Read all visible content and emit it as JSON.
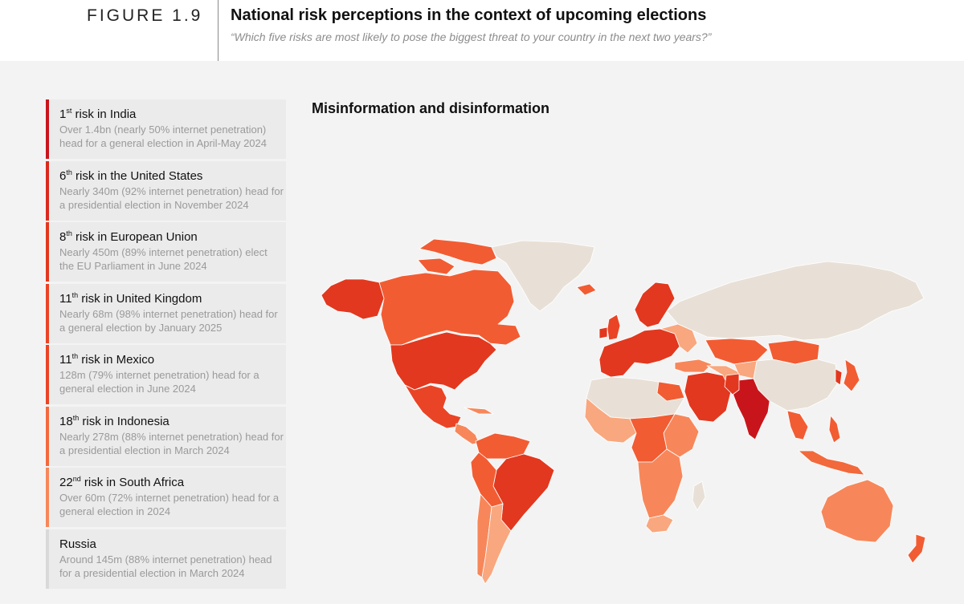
{
  "header": {
    "figure_label": "FIGURE 1.9",
    "title": "National risk perceptions in the context of upcoming elections",
    "subtitle": "“Which five risks are most likely to pose the biggest threat to your country in the next two years?”"
  },
  "map": {
    "title": "Misinformation and disinformation",
    "colors": {
      "darkest": "#c8151b",
      "dark": "#e2381f",
      "mid": "#f25c33",
      "light": "#f7875a",
      "lightest": "#f9a77e",
      "no_data": "#e8e0d6",
      "ocean": "#f3f3f3"
    }
  },
  "cards": [
    {
      "rank": "1",
      "suffix": "st",
      "rest": " risk in India",
      "desc": "Over 1.4bn (nearly 50% internet penetration) head for a general election in April-May 2024",
      "color": "#c8151b"
    },
    {
      "rank": "6",
      "suffix": "th",
      "rest": " risk in the United States",
      "desc": "Nearly 340m (92% internet penetration) head for a presidential election in November 2024",
      "color": "#d92a1e"
    },
    {
      "rank": "8",
      "suffix": "th",
      "rest": " risk in European Union",
      "desc": "Nearly 450m (89% internet penetration) elect the EU Parliament in June 2024",
      "color": "#e2381f"
    },
    {
      "rank": "11",
      "suffix": "th",
      "rest": " risk in United Kingdom",
      "desc": "Nearly 68m (98% internet penetration) head for a general election by January 2025",
      "color": "#ea4426"
    },
    {
      "rank": "11",
      "suffix": "th",
      "rest": " risk in Mexico",
      "desc": "128m (79% internet penetration) head for a general election in June 2024",
      "color": "#ea4426"
    },
    {
      "rank": "18",
      "suffix": "th",
      "rest": " risk in Indonesia",
      "desc": "Nearly 278m (88% internet penetration) head for a presidential election in March 2024",
      "color": "#f2693c"
    },
    {
      "rank": "22",
      "suffix": "nd",
      "rest": " risk in South Africa",
      "desc": "Over 60m (72% internet penetration) head for a general election in 2024",
      "color": "#f7875a"
    },
    {
      "rank": "",
      "suffix": "",
      "rest": "Russia",
      "desc": "Around 145m (88% internet penetration) head for a presidential election in March 2024",
      "color": "#d9d9d9"
    }
  ]
}
